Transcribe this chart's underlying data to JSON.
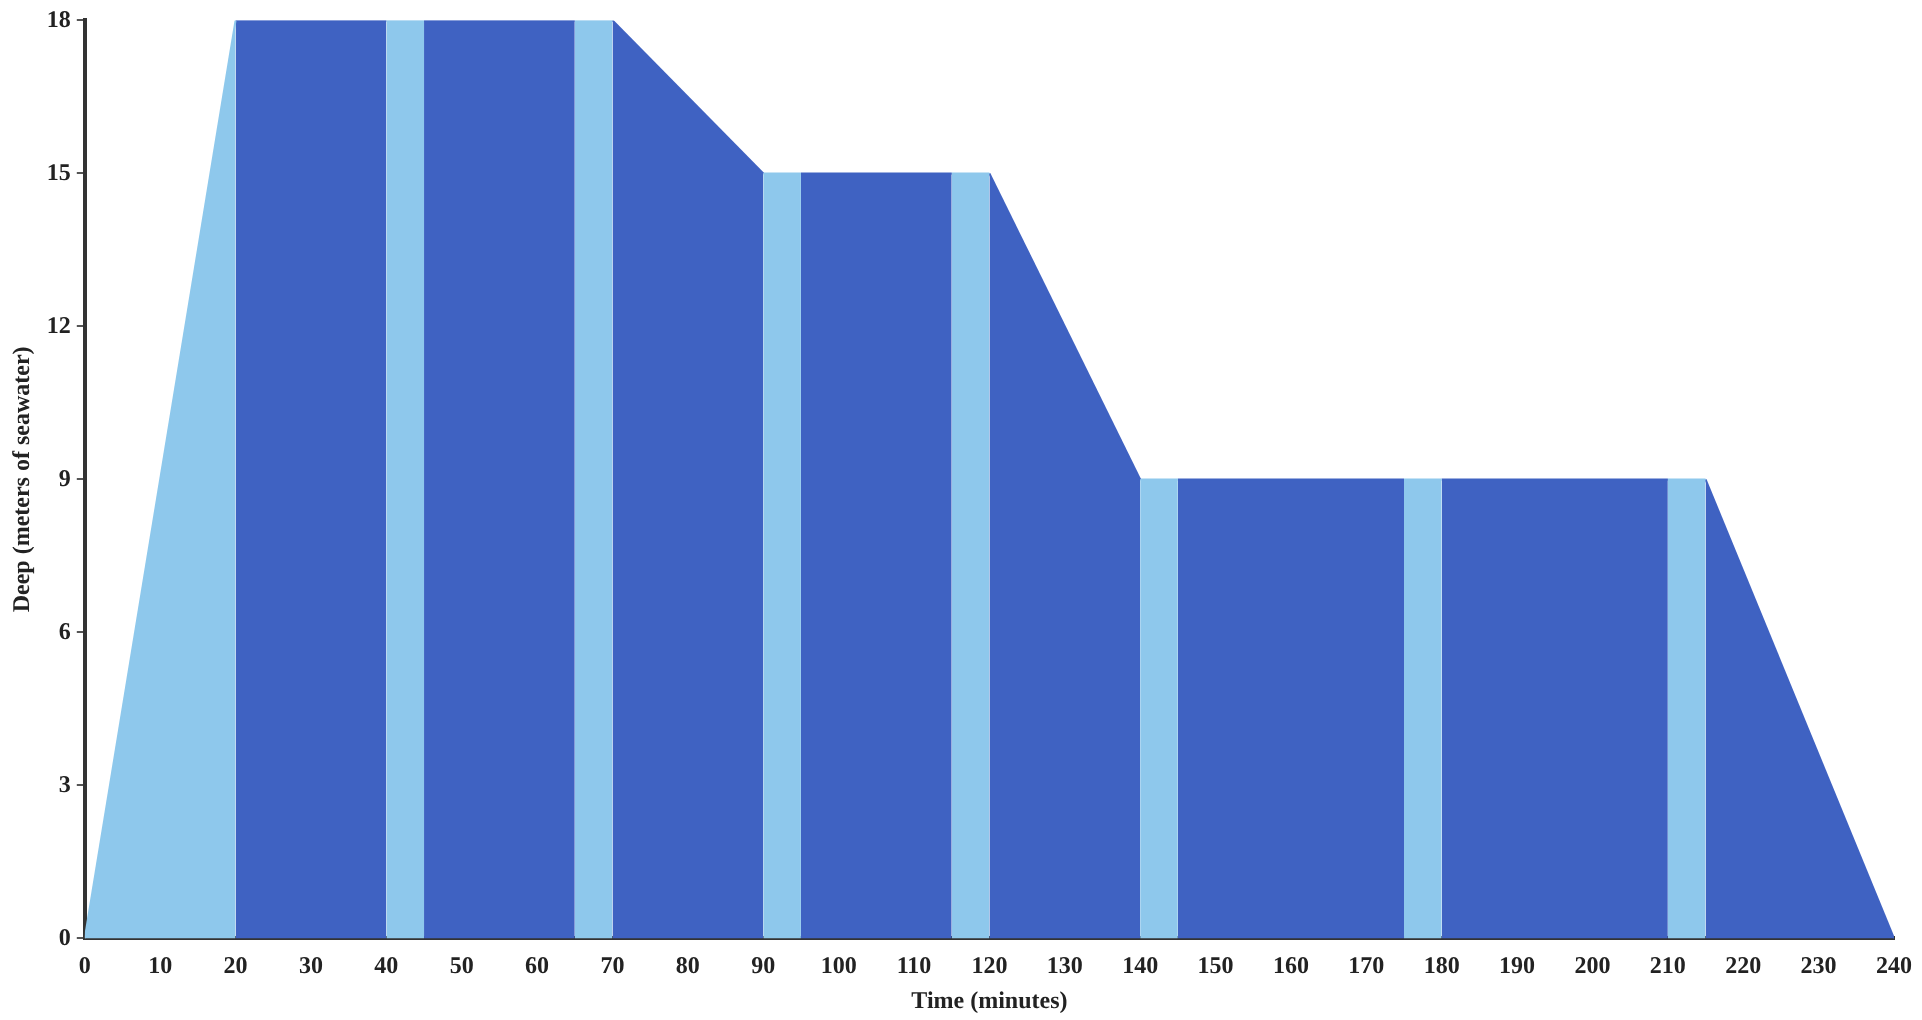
{
  "chart_data": {
    "type": "area",
    "xlabel": "Time (minutes)",
    "ylabel": "Deep (meters of seawater)",
    "xlim": [
      0,
      240
    ],
    "xticks": [
      0,
      10,
      20,
      30,
      40,
      50,
      60,
      70,
      80,
      90,
      100,
      110,
      120,
      130,
      140,
      150,
      160,
      170,
      180,
      190,
      200,
      210,
      220,
      230,
      240
    ],
    "ylim": [
      0,
      18
    ],
    "yticks": [
      0,
      3,
      6,
      9,
      12,
      15,
      18
    ],
    "grid": false,
    "legend": false,
    "series": [
      {
        "color": "#8ec8ec",
        "x": [
          0,
          20
        ],
        "values": [
          0,
          18
        ]
      },
      {
        "color": "#3f62c2",
        "x": [
          20,
          40
        ],
        "values": [
          18,
          18
        ]
      },
      {
        "color": "#8ec8ec",
        "x": [
          40,
          45
        ],
        "values": [
          18,
          18
        ]
      },
      {
        "color": "#3f62c2",
        "x": [
          45,
          65
        ],
        "values": [
          18,
          18
        ]
      },
      {
        "color": "#8ec8ec",
        "x": [
          65,
          70
        ],
        "values": [
          18,
          18
        ]
      },
      {
        "color": "#3f62c2",
        "x": [
          70,
          90
        ],
        "values": [
          18,
          15
        ]
      },
      {
        "color": "#8ec8ec",
        "x": [
          90,
          95
        ],
        "values": [
          15,
          15
        ]
      },
      {
        "color": "#3f62c2",
        "x": [
          95,
          115
        ],
        "values": [
          15,
          15
        ]
      },
      {
        "color": "#8ec8ec",
        "x": [
          115,
          120
        ],
        "values": [
          15,
          15
        ]
      },
      {
        "color": "#3f62c2",
        "x": [
          120,
          140
        ],
        "values": [
          15,
          9
        ]
      },
      {
        "color": "#8ec8ec",
        "x": [
          140,
          145
        ],
        "values": [
          9,
          9
        ]
      },
      {
        "color": "#3f62c2",
        "x": [
          145,
          175
        ],
        "values": [
          9,
          9
        ]
      },
      {
        "color": "#8ec8ec",
        "x": [
          175,
          180
        ],
        "values": [
          9,
          9
        ]
      },
      {
        "color": "#3f62c2",
        "x": [
          180,
          210
        ],
        "values": [
          9,
          9
        ]
      },
      {
        "color": "#8ec8ec",
        "x": [
          210,
          215
        ],
        "values": [
          9,
          9
        ]
      },
      {
        "color": "#3f62c2",
        "x": [
          215,
          240
        ],
        "values": [
          9,
          0
        ]
      }
    ]
  }
}
